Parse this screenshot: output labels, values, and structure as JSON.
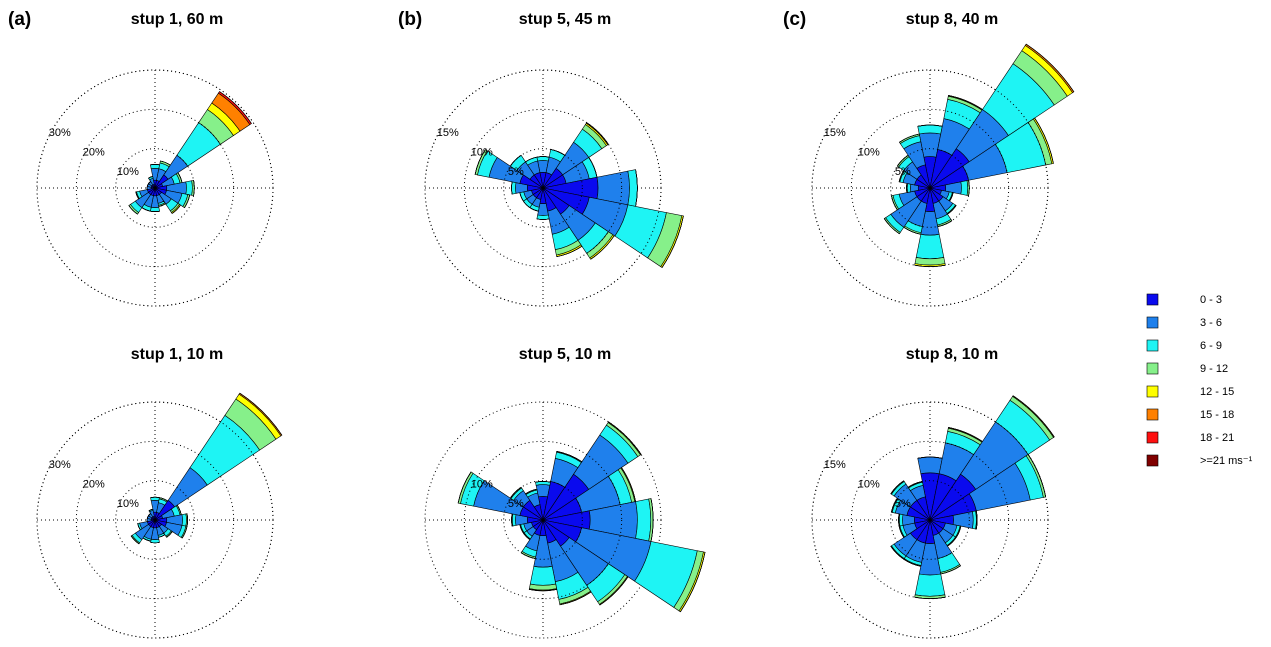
{
  "panel_labels": [
    "(a)",
    "(b)",
    "(c)"
  ],
  "directions": [
    0,
    22.5,
    45,
    67.5,
    90,
    112.5,
    135,
    157.5,
    180,
    202.5,
    225,
    247.5,
    270,
    292.5,
    315,
    337.5
  ],
  "legend": [
    {
      "name": "0 - 3",
      "color": "#0a0aee"
    },
    {
      "name": "3 - 6",
      "color": "#1f80ec"
    },
    {
      "name": "6 - 9",
      "color": "#1ef4f4"
    },
    {
      "name": "9 - 12",
      "color": "#86f08a"
    },
    {
      "name": "12 - 15",
      "color": "#ffff00"
    },
    {
      "name": "15 - 18",
      "color": "#ff8000"
    },
    {
      "name": "18 - 21",
      "color": "#ff1010"
    },
    {
      "name": ">=21 ms⁻¹",
      "color": "#800000"
    }
  ],
  "chart_data": [
    {
      "type": "windrose",
      "title": "stup 1, 60 m",
      "rlim": [
        0,
        30
      ],
      "rticks": [
        {
          "value": 10,
          "label": "10%"
        },
        {
          "value": 20,
          "label": "20%"
        },
        {
          "value": 30,
          "label": "30%"
        }
      ],
      "series": [
        {
          "values": [
            2,
            2,
            4,
            2,
            3,
            3,
            2,
            2,
            2,
            2,
            2,
            2,
            1,
            1,
            1,
            1
          ]
        },
        {
          "values": [
            3,
            3,
            6,
            3,
            5,
            4,
            3,
            2,
            3,
            3,
            4,
            2,
            1,
            1,
            1,
            1.5
          ]
        },
        {
          "values": [
            1,
            1.5,
            10,
            1.5,
            1.5,
            1.5,
            2,
            0.5,
            1,
            1,
            1.5,
            0.8,
            0,
            0,
            0,
            0.5
          ]
        },
        {
          "values": [
            0,
            0.5,
            4,
            0.5,
            0.5,
            0.5,
            0.5,
            0.3,
            0,
            0,
            0.5,
            0.2,
            0,
            0,
            0,
            0
          ]
        },
        {
          "values": [
            0,
            0,
            2,
            0,
            0,
            0,
            0.3,
            0,
            0,
            0,
            0,
            0,
            0,
            0,
            0,
            0
          ]
        },
        {
          "values": [
            0,
            0,
            3,
            0,
            0,
            0,
            0,
            0,
            0,
            0,
            0,
            0,
            0,
            0,
            0,
            0
          ]
        },
        {
          "values": [
            0,
            0,
            0.5,
            0,
            0,
            0,
            0,
            0,
            0,
            0,
            0,
            0,
            0,
            0,
            0,
            0
          ]
        },
        {
          "values": [
            0,
            0,
            0,
            0,
            0,
            0,
            0,
            0,
            0,
            0,
            0,
            0,
            0,
            0,
            0,
            0
          ]
        }
      ]
    },
    {
      "type": "windrose",
      "title": "stup 5, 45 m",
      "rlim": [
        0,
        15
      ],
      "rticks": [
        {
          "value": 5,
          "label": "5%"
        },
        {
          "value": 10,
          "label": "10%"
        },
        {
          "value": 15,
          "label": "15%"
        }
      ],
      "series": [
        {
          "values": [
            2,
            2,
            3,
            3,
            7,
            6,
            4,
            3,
            2,
            1.5,
            1.5,
            1.5,
            2,
            3,
            2,
            2
          ]
        },
        {
          "values": [
            1.5,
            2,
            4,
            3,
            4,
            5,
            4,
            3,
            1.5,
            1,
            1,
            1,
            1.5,
            4,
            2,
            1.5
          ]
        },
        {
          "values": [
            0.5,
            1,
            2,
            1,
            1,
            5,
            2,
            2,
            0.5,
            0.5,
            0.5,
            0.5,
            0.5,
            1.5,
            1,
            0.5
          ]
        },
        {
          "values": [
            0,
            0,
            0.7,
            0,
            0,
            2,
            0.7,
            0.7,
            0,
            0,
            0,
            0,
            0,
            0.3,
            0,
            0
          ]
        },
        {
          "values": [
            0,
            0,
            0.2,
            0,
            0,
            0.2,
            0.2,
            0.2,
            0,
            0,
            0,
            0,
            0,
            0,
            0,
            0
          ]
        },
        {
          "values": [
            0,
            0,
            0.1,
            0,
            0,
            0,
            0,
            0,
            0,
            0,
            0,
            0,
            0,
            0,
            0,
            0
          ]
        },
        {
          "values": [
            0,
            0,
            0,
            0,
            0,
            0,
            0,
            0,
            0,
            0,
            0,
            0,
            0,
            0,
            0,
            0
          ]
        },
        {
          "values": [
            0,
            0,
            0,
            0,
            0,
            0,
            0,
            0,
            0,
            0,
            0,
            0,
            0,
            0,
            0,
            0
          ]
        }
      ]
    },
    {
      "type": "windrose",
      "title": "stup 8, 40 m",
      "rlim": [
        0,
        15
      ],
      "rticks": [
        {
          "value": 5,
          "label": "5%"
        },
        {
          "value": 10,
          "label": "10%"
        },
        {
          "value": 15,
          "label": "15%"
        }
      ],
      "series": [
        {
          "values": [
            4,
            5,
            6,
            5,
            2,
            1.5,
            2,
            2,
            3,
            2,
            2,
            2,
            1.5,
            2,
            2,
            3
          ]
        },
        {
          "values": [
            3,
            4,
            6,
            5,
            2,
            1,
            1.5,
            2,
            3,
            3,
            4,
            2,
            1,
            1.5,
            2,
            3
          ]
        },
        {
          "values": [
            1,
            2.5,
            7,
            5,
            0.8,
            0.4,
            0.4,
            0.8,
            3,
            0.8,
            0.8,
            0.8,
            0.4,
            0.4,
            0.8,
            0.8
          ]
        },
        {
          "values": [
            0,
            0.4,
            2,
            0.8,
            0.2,
            0.1,
            0.1,
            0.2,
            0.8,
            0.2,
            0.2,
            0.2,
            0.1,
            0.1,
            0.2,
            0.2
          ]
        },
        {
          "values": [
            0,
            0.1,
            0.8,
            0.2,
            0,
            0,
            0,
            0,
            0.2,
            0,
            0,
            0,
            0,
            0,
            0,
            0
          ]
        },
        {
          "values": [
            0,
            0,
            0.2,
            0,
            0,
            0,
            0,
            0,
            0,
            0,
            0,
            0,
            0,
            0,
            0,
            0
          ]
        },
        {
          "values": [
            0,
            0,
            0,
            0,
            0,
            0,
            0,
            0,
            0,
            0,
            0,
            0,
            0,
            0,
            0,
            0
          ]
        },
        {
          "values": [
            0,
            0,
            0,
            0,
            0,
            0,
            0,
            0,
            0,
            0,
            0,
            0,
            0,
            0,
            0,
            0
          ]
        }
      ]
    },
    {
      "type": "windrose",
      "title": "stup 1, 10 m",
      "rlim": [
        0,
        30
      ],
      "rticks": [
        {
          "value": 10,
          "label": "10%"
        },
        {
          "value": 20,
          "label": "20%"
        },
        {
          "value": 30,
          "label": "30%"
        }
      ],
      "series": [
        {
          "values": [
            2,
            2,
            6,
            2,
            3,
            3,
            2,
            2,
            2,
            2,
            2,
            2,
            1,
            1,
            1,
            1
          ]
        },
        {
          "values": [
            3,
            2.5,
            10,
            3,
            4,
            4,
            2,
            2,
            3,
            3,
            4,
            2,
            1,
            1,
            1,
            1.5
          ]
        },
        {
          "values": [
            0.8,
            1,
            16,
            1.5,
            1,
            1,
            1,
            0.5,
            0.8,
            0.5,
            1,
            0.5,
            0,
            0,
            0,
            0.3
          ]
        },
        {
          "values": [
            0,
            0.3,
            5,
            0.3,
            0.3,
            0.3,
            0.3,
            0,
            0,
            0,
            0.3,
            0,
            0,
            0,
            0,
            0
          ]
        },
        {
          "values": [
            0,
            0,
            1.5,
            0,
            0,
            0,
            0,
            0,
            0,
            0,
            0,
            0,
            0,
            0,
            0,
            0
          ]
        },
        {
          "values": [
            0,
            0,
            0.3,
            0,
            0,
            0,
            0,
            0,
            0,
            0,
            0,
            0,
            0,
            0,
            0,
            0
          ]
        },
        {
          "values": [
            0,
            0,
            0,
            0,
            0,
            0,
            0,
            0,
            0,
            0,
            0,
            0,
            0,
            0,
            0,
            0
          ]
        },
        {
          "values": [
            0,
            0,
            0,
            0,
            0,
            0,
            0,
            0,
            0,
            0,
            0,
            0,
            0,
            0,
            0,
            0
          ]
        }
      ]
    },
    {
      "type": "windrose",
      "title": "stup 5, 10 m",
      "rlim": [
        0,
        15
      ],
      "rticks": [
        {
          "value": 5,
          "label": "5%"
        },
        {
          "value": 10,
          "label": "10%"
        }
      ],
      "series": [
        {
          "values": [
            3,
            5,
            7,
            5,
            6,
            5,
            4,
            3,
            2,
            2,
            1.5,
            1.5,
            2,
            3,
            3,
            2
          ]
        },
        {
          "values": [
            1.5,
            3,
            6,
            5,
            6,
            9,
            6,
            5,
            4,
            2,
            1,
            1,
            1.5,
            6,
            1.5,
            1.5
          ]
        },
        {
          "values": [
            0.4,
            0.8,
            1.5,
            1.5,
            1.7,
            6,
            2.5,
            2.3,
            2.3,
            0.8,
            0.4,
            0.4,
            0.4,
            1.7,
            0.4,
            0.4
          ]
        },
        {
          "values": [
            0,
            0.1,
            0.4,
            0.4,
            0.3,
            0.8,
            0.4,
            0.6,
            0.6,
            0.2,
            0.1,
            0.1,
            0.1,
            0.3,
            0.1,
            0.1
          ]
        },
        {
          "values": [
            0,
            0,
            0.1,
            0.1,
            0,
            0.2,
            0.1,
            0.1,
            0.1,
            0,
            0,
            0,
            0,
            0,
            0,
            0
          ]
        },
        {
          "values": [
            0,
            0,
            0,
            0,
            0,
            0,
            0,
            0,
            0,
            0,
            0,
            0,
            0,
            0,
            0,
            0
          ]
        },
        {
          "values": [
            0,
            0,
            0,
            0,
            0,
            0,
            0,
            0,
            0,
            0,
            0,
            0,
            0,
            0,
            0,
            0
          ]
        },
        {
          "values": [
            0,
            0,
            0,
            0,
            0,
            0,
            0,
            0,
            0,
            0,
            0,
            0,
            0,
            0,
            0,
            0
          ]
        }
      ]
    },
    {
      "type": "windrose",
      "title": "stup 8, 10 m",
      "rlim": [
        0,
        15
      ],
      "rticks": [
        {
          "value": 5,
          "label": "5%"
        },
        {
          "value": 10,
          "label": "10%"
        },
        {
          "value": 15,
          "label": "15%"
        }
      ],
      "series": [
        {
          "values": [
            6,
            6,
            7,
            6,
            3,
            2,
            2,
            2,
            3,
            3,
            3,
            2,
            2,
            3,
            3,
            3
          ]
        },
        {
          "values": [
            2,
            4,
            8,
            7,
            2.5,
            1.5,
            1.5,
            3,
            4,
            2.5,
            2.5,
            1.5,
            1.5,
            1.5,
            2.5,
            1.5
          ]
        },
        {
          "values": [
            0,
            1.5,
            3.3,
            1.7,
            0.4,
            0.4,
            0.4,
            1.8,
            2.7,
            0.4,
            0.4,
            0.4,
            0.4,
            0.4,
            0.4,
            0.4
          ]
        },
        {
          "values": [
            0,
            0.4,
            0.6,
            0.3,
            0.1,
            0.1,
            0.1,
            0.2,
            0.3,
            0.1,
            0.1,
            0.1,
            0.1,
            0.1,
            0.1,
            0.1
          ]
        },
        {
          "values": [
            0,
            0.1,
            0.1,
            0,
            0,
            0,
            0,
            0,
            0,
            0,
            0,
            0,
            0,
            0,
            0,
            0
          ]
        },
        {
          "values": [
            0,
            0,
            0,
            0,
            0,
            0,
            0,
            0,
            0,
            0,
            0,
            0,
            0,
            0,
            0,
            0
          ]
        },
        {
          "values": [
            0,
            0,
            0,
            0,
            0,
            0,
            0,
            0,
            0,
            0,
            0,
            0,
            0,
            0,
            0,
            0
          ]
        },
        {
          "values": [
            0,
            0,
            0,
            0,
            0,
            0,
            0,
            0,
            0,
            0,
            0,
            0,
            0,
            0,
            0,
            0
          ]
        }
      ]
    }
  ]
}
